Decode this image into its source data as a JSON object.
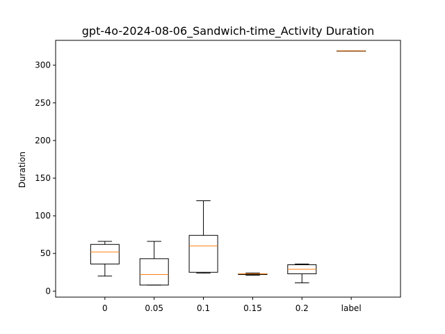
{
  "chart_data": {
    "type": "box",
    "title": "gpt-4o-2024-08-06_Sandwich-time_Activity Duration",
    "xlabel": "",
    "ylabel": "Duration",
    "ylim": [
      -8,
      333
    ],
    "yticks": [
      0,
      50,
      100,
      150,
      200,
      250,
      300
    ],
    "categories": [
      "0",
      "0.05",
      "0.1",
      "0.15",
      "0.2",
      "label"
    ],
    "boxes": [
      {
        "whisker_low": 20,
        "q1": 36,
        "median": 52,
        "q3": 62,
        "whisker_high": 66
      },
      {
        "whisker_low": 8,
        "q1": 8,
        "median": 22,
        "q3": 43,
        "whisker_high": 66
      },
      {
        "whisker_low": 24,
        "q1": 25,
        "median": 60,
        "q3": 74,
        "whisker_high": 120
      },
      {
        "whisker_low": 21,
        "q1": 22,
        "median": 23,
        "q3": 23,
        "whisker_high": 24
      },
      {
        "whisker_low": 11,
        "q1": 23,
        "median": 29,
        "q3": 35,
        "whisker_high": 36
      },
      {
        "whisker_low": 319,
        "q1": 319,
        "median": 319,
        "q3": 319,
        "whisker_high": 319
      }
    ],
    "colors": {
      "box": "#000000",
      "median": "#ff7f0e",
      "axes": "#000000"
    },
    "grid": false,
    "legend": "none"
  }
}
